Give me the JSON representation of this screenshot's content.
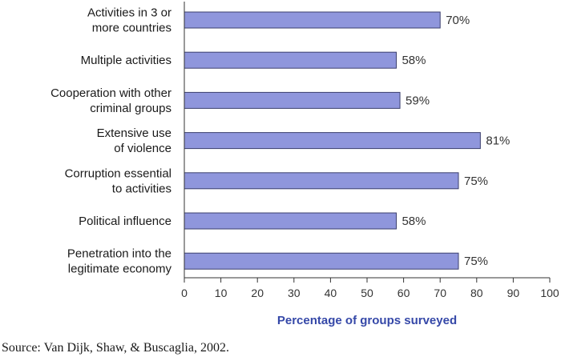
{
  "chart_data": {
    "type": "bar",
    "orientation": "horizontal",
    "categories": [
      [
        "Activities in 3 or",
        "more countries"
      ],
      [
        "Multiple activities"
      ],
      [
        "Cooperation with other",
        "criminal groups"
      ],
      [
        "Extensive use",
        "of violence"
      ],
      [
        "Corruption essential",
        "to activities"
      ],
      [
        "Political influence"
      ],
      [
        "Penetration into the",
        "legitimate economy"
      ]
    ],
    "values": [
      70,
      58,
      59,
      81,
      75,
      58,
      75
    ],
    "value_labels": [
      "70%",
      "58%",
      "59%",
      "81%",
      "75%",
      "58%",
      "75%"
    ],
    "xlabel": "Percentage of groups surveyed",
    "xlim": [
      0,
      100
    ],
    "xticks": [
      0,
      10,
      20,
      30,
      40,
      50,
      60,
      70,
      80,
      90,
      100
    ],
    "grid": false,
    "bar_color": "#8f96dc",
    "bar_edge_color": "#3b3f6e",
    "xlabel_color": "#3548a8"
  },
  "source": "Source: Van Dijk, Shaw, & Buscaglia, 2002."
}
